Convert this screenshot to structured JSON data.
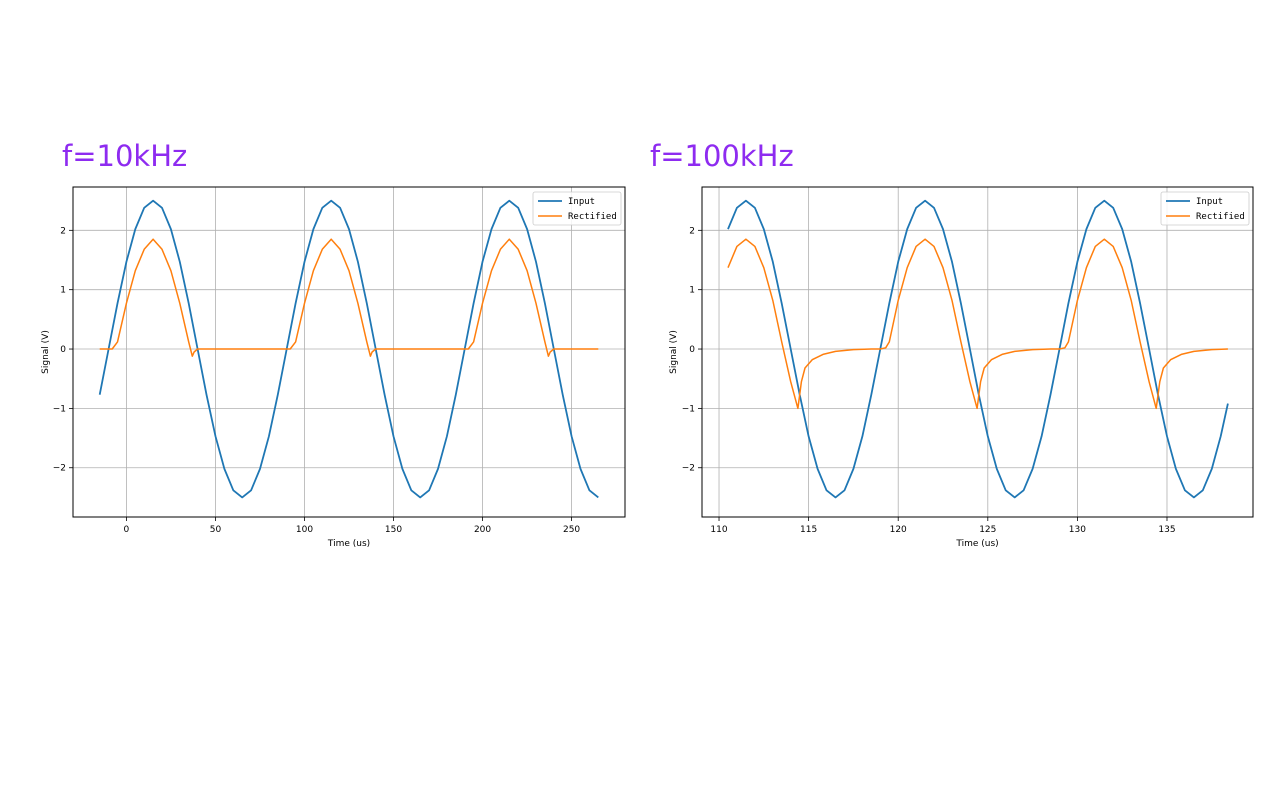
{
  "panels": {
    "left_title": "f=10kHz",
    "right_title": "f=100kHz"
  },
  "chart_data": [
    {
      "type": "line",
      "title": "f=10kHz",
      "xlabel": "Time (us)",
      "ylabel": "Signal (V)",
      "xlim": [
        -30,
        280
      ],
      "ylim": [
        -2.83,
        2.73
      ],
      "xticks": [
        0,
        50,
        100,
        150,
        200,
        250
      ],
      "yticks": [
        -2,
        -1,
        0,
        1,
        2
      ],
      "ytick_labels": [
        "−2",
        "−1",
        "0",
        "1",
        "2"
      ],
      "grid": true,
      "legend_position": "top-right",
      "colors": {
        "Input": "#1f77b4",
        "Rectified": "#ff7f0e"
      },
      "input_signal": {
        "amplitude": 2.5,
        "frequency_khz": 10,
        "peak_times_us": [
          15,
          115,
          215
        ]
      },
      "series": [
        {
          "name": "Input",
          "x": [
            -15,
            -10,
            -5,
            0,
            5,
            10,
            15,
            20,
            25,
            30,
            35,
            40,
            45,
            50,
            55,
            60,
            65,
            70,
            75,
            80,
            85,
            90,
            95,
            100,
            105,
            110,
            115,
            120,
            125,
            130,
            135,
            140,
            145,
            150,
            155,
            160,
            165,
            170,
            175,
            180,
            185,
            190,
            195,
            200,
            205,
            210,
            215,
            220,
            225,
            230,
            235,
            240,
            245,
            250,
            255,
            260,
            265
          ],
          "y": [
            -0.77,
            0.0,
            0.77,
            1.47,
            2.02,
            2.38,
            2.5,
            2.38,
            2.02,
            1.47,
            0.77,
            0.0,
            -0.77,
            -1.47,
            -2.02,
            -2.38,
            -2.5,
            -2.38,
            -2.02,
            -1.47,
            -0.77,
            0.0,
            0.77,
            1.47,
            2.02,
            2.38,
            2.5,
            2.38,
            2.02,
            1.47,
            0.77,
            0.0,
            -0.77,
            -1.47,
            -2.02,
            -2.38,
            -2.5,
            -2.38,
            -2.02,
            -1.47,
            -0.77,
            0.0,
            0.77,
            1.47,
            2.02,
            2.38,
            2.5,
            2.38,
            2.02,
            1.47,
            0.77,
            0.0,
            -0.77,
            -1.47,
            -2.02,
            -2.38,
            -2.5
          ]
        },
        {
          "name": "Rectified",
          "x": [
            -15,
            -8,
            -5,
            0,
            5,
            10,
            15,
            20,
            25,
            30,
            35,
            37,
            38,
            40,
            50,
            60,
            70,
            80,
            90,
            92,
            95,
            100,
            105,
            110,
            115,
            120,
            125,
            130,
            135,
            137,
            138,
            140,
            150,
            160,
            170,
            180,
            190,
            192,
            195,
            200,
            205,
            210,
            215,
            220,
            225,
            230,
            235,
            237,
            238,
            240,
            250,
            265
          ],
          "y": [
            0.0,
            0.0,
            0.12,
            0.77,
            1.32,
            1.68,
            1.85,
            1.68,
            1.32,
            0.77,
            0.12,
            -0.12,
            -0.05,
            0.0,
            0.0,
            0.0,
            0.0,
            0.0,
            0.0,
            0.0,
            0.12,
            0.77,
            1.32,
            1.68,
            1.85,
            1.68,
            1.32,
            0.77,
            0.12,
            -0.12,
            -0.05,
            0.0,
            0.0,
            0.0,
            0.0,
            0.0,
            0.0,
            0.0,
            0.12,
            0.77,
            1.32,
            1.68,
            1.85,
            1.68,
            1.32,
            0.77,
            0.12,
            -0.12,
            -0.05,
            0.0,
            0.0,
            0.0
          ]
        }
      ]
    },
    {
      "type": "line",
      "title": "f=100kHz",
      "xlabel": "Time (us)",
      "ylabel": "Signal (V)",
      "xlim": [
        109.05,
        139.8
      ],
      "ylim": [
        -2.83,
        2.73
      ],
      "xticks": [
        110,
        115,
        120,
        125,
        130,
        135
      ],
      "yticks": [
        -2,
        -1,
        0,
        1,
        2
      ],
      "ytick_labels": [
        "−2",
        "−1",
        "0",
        "1",
        "2"
      ],
      "grid": true,
      "legend_position": "top-right",
      "colors": {
        "Input": "#1f77b4",
        "Rectified": "#ff7f0e"
      },
      "input_signal": {
        "amplitude": 2.5,
        "frequency_khz": 100,
        "peak_times_us": [
          111.5,
          121.5,
          131.5
        ]
      },
      "series": [
        {
          "name": "Input",
          "x": [
            110.5,
            111.0,
            111.5,
            112.0,
            112.5,
            113.0,
            113.5,
            114.0,
            114.5,
            115.0,
            115.5,
            116.0,
            116.5,
            117.0,
            117.5,
            118.0,
            118.5,
            119.0,
            119.5,
            120.0,
            120.5,
            121.0,
            121.5,
            122.0,
            122.5,
            123.0,
            123.5,
            124.0,
            124.5,
            125.0,
            125.5,
            126.0,
            126.5,
            127.0,
            127.5,
            128.0,
            128.5,
            129.0,
            129.5,
            130.0,
            130.5,
            131.0,
            131.5,
            132.0,
            132.5,
            133.0,
            133.5,
            134.0,
            134.5,
            135.0,
            135.5,
            136.0,
            136.5,
            137.0,
            137.5,
            138.0,
            138.4
          ],
          "y": [
            2.02,
            2.38,
            2.5,
            2.38,
            2.02,
            1.47,
            0.77,
            0.0,
            -0.77,
            -1.47,
            -2.02,
            -2.38,
            -2.5,
            -2.38,
            -2.02,
            -1.47,
            -0.77,
            0.0,
            0.77,
            1.47,
            2.02,
            2.38,
            2.5,
            2.38,
            2.02,
            1.47,
            0.77,
            0.0,
            -0.77,
            -1.47,
            -2.02,
            -2.38,
            -2.5,
            -2.38,
            -2.02,
            -1.47,
            -0.77,
            0.0,
            0.77,
            1.47,
            2.02,
            2.38,
            2.5,
            2.38,
            2.02,
            1.47,
            0.77,
            0.0,
            -0.77,
            -1.47,
            -2.02,
            -2.38,
            -2.5,
            -2.38,
            -2.02,
            -1.47,
            -0.92
          ]
        },
        {
          "name": "Rectified",
          "x": [
            110.5,
            111.0,
            111.5,
            112.0,
            112.5,
            113.0,
            113.5,
            114.0,
            114.4,
            114.6,
            114.8,
            115.2,
            115.8,
            116.5,
            117.5,
            118.5,
            119.0,
            119.3,
            119.5,
            120.0,
            120.5,
            121.0,
            121.5,
            122.0,
            122.5,
            123.0,
            123.5,
            124.0,
            124.4,
            124.6,
            124.8,
            125.2,
            125.8,
            126.5,
            127.5,
            128.5,
            129.0,
            129.3,
            129.5,
            130.0,
            130.5,
            131.0,
            131.5,
            132.0,
            132.5,
            133.0,
            133.5,
            134.0,
            134.4,
            134.6,
            134.8,
            135.2,
            135.8,
            136.5,
            137.5,
            138.4
          ],
          "y": [
            1.37,
            1.73,
            1.85,
            1.73,
            1.37,
            0.82,
            0.12,
            -0.55,
            -1.0,
            -0.55,
            -0.32,
            -0.18,
            -0.09,
            -0.04,
            -0.01,
            0.0,
            0.0,
            0.02,
            0.12,
            0.82,
            1.37,
            1.73,
            1.85,
            1.73,
            1.37,
            0.82,
            0.12,
            -0.55,
            -1.0,
            -0.55,
            -0.32,
            -0.18,
            -0.09,
            -0.04,
            -0.01,
            0.0,
            0.0,
            0.02,
            0.12,
            0.82,
            1.37,
            1.73,
            1.85,
            1.73,
            1.37,
            0.82,
            0.12,
            -0.55,
            -1.0,
            -0.55,
            -0.32,
            -0.18,
            -0.09,
            -0.04,
            -0.01,
            0.0
          ]
        }
      ]
    }
  ]
}
